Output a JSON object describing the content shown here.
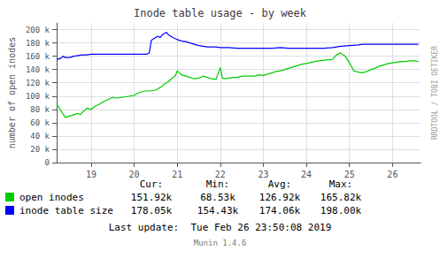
{
  "chart_data": {
    "type": "line",
    "title": "Inode table usage - by week",
    "ylabel": "number of open inodes",
    "xlim": [
      18.2,
      26.65
    ],
    "xticks": [
      19,
      20,
      21,
      22,
      23,
      24,
      25,
      26
    ],
    "ylim": [
      0,
      210000
    ],
    "yticks": [
      0,
      {
        "value": 20000,
        "label": "20 k"
      },
      {
        "value": 40000,
        "label": "40 k"
      },
      {
        "value": 60000,
        "label": "60 k"
      },
      {
        "value": 80000,
        "label": "80 k"
      },
      {
        "value": 100000,
        "label": "100 k"
      },
      {
        "value": 120000,
        "label": "120 k"
      },
      {
        "value": 140000,
        "label": "140 k"
      },
      {
        "value": 160000,
        "label": "160 k"
      },
      {
        "value": 180000,
        "label": "180 k"
      },
      {
        "value": 200000,
        "label": "200 k"
      }
    ],
    "grid": true,
    "series": [
      {
        "name": "open inodes",
        "color": "#00CC00",
        "x": [
          18.2,
          18.4,
          18.5,
          18.6,
          18.7,
          18.75,
          18.8,
          18.85,
          18.9,
          19.0,
          19.1,
          19.2,
          19.3,
          19.4,
          19.5,
          19.6,
          19.7,
          19.8,
          19.9,
          20.0,
          20.1,
          20.2,
          20.3,
          20.4,
          20.5,
          20.6,
          20.65,
          20.7,
          20.75,
          20.8,
          20.85,
          20.9,
          20.95,
          21.0,
          21.05,
          21.1,
          21.2,
          21.3,
          21.4,
          21.5,
          21.6,
          21.7,
          21.8,
          21.9,
          22.0,
          22.05,
          22.1,
          22.2,
          22.3,
          22.4,
          22.5,
          22.6,
          22.7,
          22.8,
          22.9,
          23.0,
          23.1,
          23.2,
          23.3,
          23.4,
          23.5,
          23.6,
          23.7,
          23.8,
          23.9,
          24.0,
          24.2,
          24.4,
          24.6,
          24.7,
          24.8,
          24.85,
          24.9,
          24.95,
          25.0,
          25.1,
          25.2,
          25.3,
          25.4,
          25.5,
          25.6,
          25.7,
          25.8,
          25.9,
          26.0,
          26.1,
          26.2,
          26.3,
          26.4,
          26.5,
          26.6
        ],
        "values": [
          88000,
          68000,
          70000,
          72000,
          74000,
          72000,
          76000,
          78000,
          82000,
          80000,
          85000,
          88000,
          92000,
          95000,
          98000,
          97000,
          98000,
          99000,
          100000,
          101000,
          105000,
          107000,
          108000,
          108000,
          109000,
          113000,
          115000,
          118000,
          120000,
          122000,
          125000,
          128000,
          130000,
          138000,
          135000,
          132000,
          130000,
          128000,
          126000,
          127000,
          130000,
          128000,
          126000,
          125000,
          143000,
          127000,
          126000,
          127000,
          128000,
          128000,
          130000,
          130000,
          130000,
          130000,
          132000,
          131000,
          133000,
          135000,
          137000,
          138000,
          140000,
          142000,
          144000,
          146000,
          148000,
          149000,
          152000,
          154000,
          155000,
          162000,
          165000,
          162000,
          160000,
          155000,
          150000,
          138000,
          136000,
          135000,
          137000,
          140000,
          142000,
          145000,
          147000,
          149000,
          150000,
          151000,
          152000,
          152000,
          153000,
          153000,
          152000
        ],
        "stats": [
          "151.92k",
          "68.53k",
          "126.92k",
          "165.82k"
        ]
      },
      {
        "name": "inode table size",
        "color": "#0000FF",
        "x": [
          18.2,
          18.3,
          18.35,
          18.4,
          18.5,
          18.6,
          18.7,
          18.8,
          18.9,
          19.0,
          19.5,
          20.0,
          20.3,
          20.35,
          20.4,
          20.45,
          20.5,
          20.55,
          20.6,
          20.65,
          20.7,
          20.75,
          20.8,
          20.85,
          20.9,
          21.0,
          21.1,
          21.2,
          21.3,
          21.5,
          21.7,
          21.9,
          22.0,
          22.2,
          22.4,
          22.6,
          22.8,
          23.0,
          23.2,
          23.4,
          23.6,
          23.8,
          24.0,
          24.2,
          24.4,
          24.6,
          24.8,
          25.0,
          25.2,
          25.3,
          25.4,
          25.6,
          25.8,
          26.0,
          26.2,
          26.4,
          26.6
        ],
        "values": [
          155000,
          157000,
          160000,
          158000,
          158000,
          160000,
          161000,
          162000,
          162000,
          163000,
          163000,
          163000,
          163000,
          165000,
          184000,
          186000,
          188000,
          190000,
          188000,
          192000,
          194000,
          196000,
          192000,
          190000,
          188000,
          185000,
          183000,
          182000,
          180000,
          176000,
          174000,
          174000,
          173000,
          173000,
          172000,
          172000,
          172000,
          172000,
          172000,
          173000,
          172000,
          172000,
          172000,
          172000,
          172000,
          173000,
          175000,
          176000,
          177000,
          178000,
          178000,
          178000,
          178000,
          178000,
          178000,
          178000,
          178000
        ],
        "stats": [
          "178.05k",
          "154.43k",
          "174.06k",
          "198.00k"
        ]
      }
    ],
    "stats_headers": [
      "Cur:",
      "Min:",
      "Avg:",
      "Max:"
    ],
    "annotations": [
      "RRDTOOL / TOBI OETIKER",
      "Last update:  Tue Feb 26 23:50:08 2019",
      "Munin 1.4.6"
    ]
  }
}
